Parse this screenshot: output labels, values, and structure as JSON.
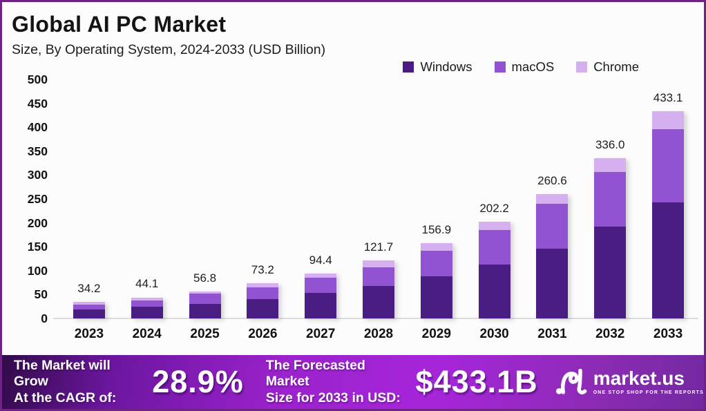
{
  "header": {
    "title": "Global AI PC Market",
    "subtitle": "Size, By Operating System, 2024-2033 (USD Billion)"
  },
  "chart_data": {
    "type": "bar",
    "stacked": true,
    "title": "Global AI PC Market",
    "subtitle": "Size, By Operating System, 2024-2033 (USD Billion)",
    "unit": "USD Billion",
    "categories": [
      "2023",
      "2024",
      "2025",
      "2026",
      "2027",
      "2028",
      "2029",
      "2030",
      "2031",
      "2032",
      "2033"
    ],
    "series": [
      {
        "name": "Windows",
        "color": "#4a1d82",
        "values": [
          18.5,
          24.9,
          30.1,
          40.6,
          53.5,
          67.5,
          88.0,
          113.0,
          146.0,
          192.7,
          243.5
        ]
      },
      {
        "name": "macOS",
        "color": "#9153d1",
        "values": [
          10.2,
          13.4,
          21.4,
          24.4,
          31.5,
          39.8,
          53.4,
          71.5,
          93.6,
          114.3,
          152.2
        ]
      },
      {
        "name": "Chrome",
        "color": "#d5aff0",
        "values": [
          5.5,
          5.8,
          5.3,
          8.2,
          9.4,
          14.4,
          15.5,
          17.7,
          21.0,
          29.0,
          37.4
        ]
      }
    ],
    "total_labels": [
      "34.2",
      "44.1",
      "56.8",
      "73.2",
      "94.4",
      "121.7",
      "156.9",
      "202.2",
      "260.6",
      "336.0",
      "433.1"
    ],
    "ylim": [
      0,
      500
    ],
    "yticks": [
      0,
      50,
      100,
      150,
      200,
      250,
      300,
      350,
      400,
      450,
      500
    ],
    "grid": false,
    "legend_position": "top-right"
  },
  "footer": {
    "cagr": {
      "line1": "The Market will Grow",
      "line2": "At the CAGR of:",
      "value": "28.9%"
    },
    "forecast": {
      "line1": "The Forecasted Market",
      "line2": "Size for 2033 in USD:",
      "value": "$433.1B"
    },
    "brand": {
      "name": "market.us",
      "tagline": "ONE STOP SHOP FOR THE REPORTS"
    }
  },
  "colors": {
    "border_accent": "#6f2384",
    "windows": "#4a1d82",
    "macos": "#9153d1",
    "chrome": "#d5aff0",
    "footer_gradient_dark": "#310b49",
    "footer_gradient_bright": "#a626da",
    "footer_gradient_right": "#7229a0",
    "baseline_gray": "#dcdcdc"
  }
}
